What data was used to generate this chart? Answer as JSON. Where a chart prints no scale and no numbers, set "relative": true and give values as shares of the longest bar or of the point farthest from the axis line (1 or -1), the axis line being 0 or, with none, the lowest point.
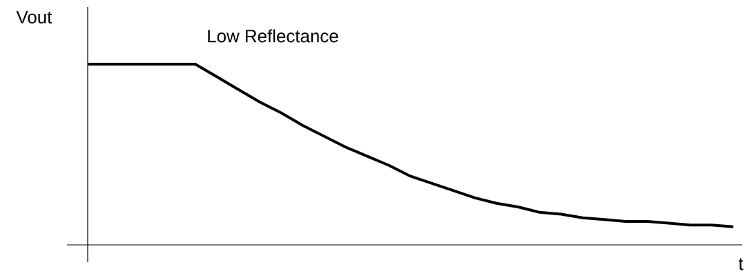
{
  "chart_data": {
    "type": "line",
    "relative": true,
    "ylabel": "Vout",
    "xlabel": "t",
    "annotations": [
      "Low Reflectance"
    ],
    "categories": [
      null,
      null,
      null,
      null,
      null,
      null,
      null,
      null,
      null,
      null,
      null,
      null,
      null,
      null,
      null,
      null,
      null,
      null,
      null,
      null,
      null,
      null,
      null,
      null,
      null,
      null,
      null,
      null,
      null,
      null,
      null
    ],
    "series": [
      {
        "color": "#000000",
        "values": [
          1,
          1,
          1,
          1,
          1,
          1,
          0.93,
          0.86,
          0.79,
          0.73,
          0.66,
          0.6,
          0.54,
          0.49,
          0.44,
          0.38,
          0.34,
          0.3,
          0.26,
          0.23,
          0.21,
          0.18,
          0.17,
          0.15,
          0.14,
          0.13,
          0.13,
          0.12,
          0.11,
          0.11,
          0.1
        ]
      }
    ]
  }
}
